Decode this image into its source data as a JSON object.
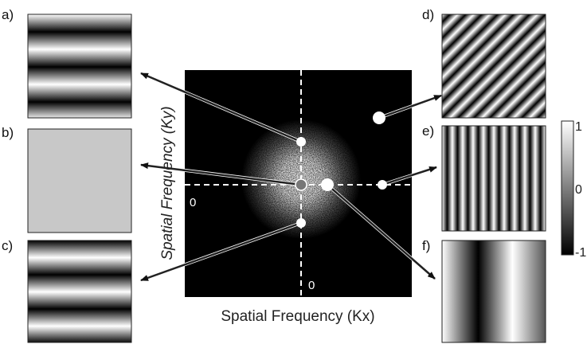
{
  "panels": [
    {
      "label": "a)"
    },
    {
      "label": "b)"
    },
    {
      "label": "c)"
    },
    {
      "label": "d)"
    },
    {
      "label": "e)"
    },
    {
      "label": "f)"
    }
  ],
  "spectrum": {
    "x_axis_label": "Spatial Frequency (Kx)",
    "y_axis_label": "Spatial Frequency (Ky)",
    "origin_labels": [
      "0",
      "0"
    ]
  },
  "colorbar": {
    "tick_labels": [
      "1",
      "0",
      "-1"
    ]
  }
}
